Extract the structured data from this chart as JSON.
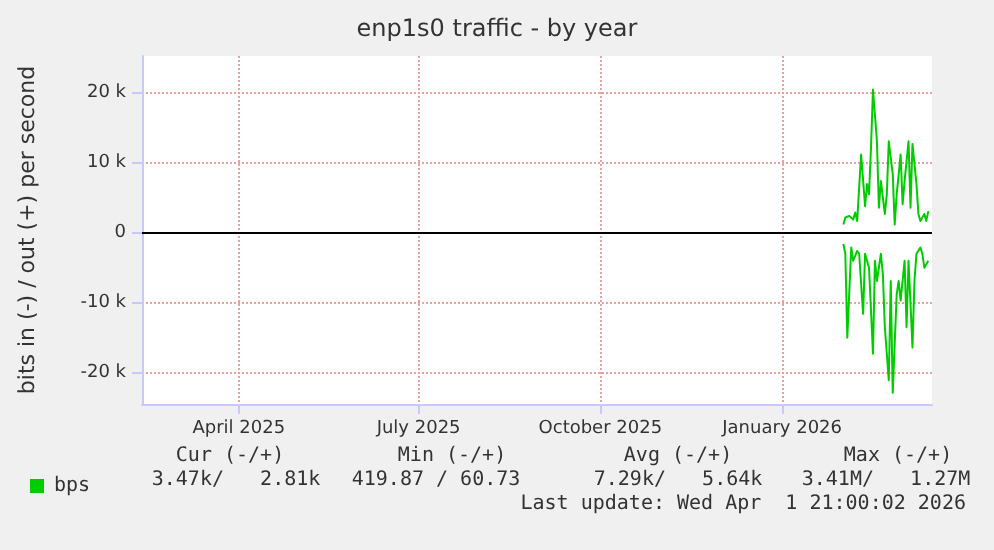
{
  "chart_data": {
    "type": "line",
    "title": "enp1s0 traffic - by year",
    "ylabel": "bits in (-) / out (+) per second",
    "xlim": [
      "2025-02-26",
      "2026-04-01T21:00"
    ],
    "xticks": [
      {
        "value": "2025-04-16",
        "label": "April 2025"
      },
      {
        "value": "2025-07-16",
        "label": "July 2025"
      },
      {
        "value": "2025-10-16",
        "label": "October 2025"
      },
      {
        "value": "2026-01-16",
        "label": "January 2026"
      }
    ],
    "ylim": [
      -24500,
      25300
    ],
    "yticks": [
      {
        "value": -20000,
        "label": "-20 k"
      },
      {
        "value": -10000,
        "label": "-10 k"
      },
      0,
      {
        "value": 10000,
        "label": "10 k"
      },
      {
        "value": 20000,
        "label": "20 k"
      }
    ],
    "grid": true,
    "legend": "bottom left",
    "marker": "none",
    "line_style": "solid",
    "ref_lines": [
      {
        "axis": "y",
        "value": 0,
        "color": "#000000"
      }
    ],
    "series": [
      {
        "name": "bps",
        "color": "#00cc00",
        "x": [
          "2026-02-16",
          "2026-02-17",
          "2026-02-19",
          "2026-02-21",
          "2026-02-22",
          "2026-02-23",
          "2026-02-25",
          "2026-02-27",
          "2026-02-28",
          "2026-03-01",
          "2026-03-02",
          "2026-03-03",
          "2026-03-05",
          "2026-03-06",
          "2026-03-07",
          "2026-03-09",
          "2026-03-10",
          "2026-03-11",
          "2026-03-13",
          "2026-03-14",
          "2026-03-15",
          "2026-03-17",
          "2026-03-18",
          "2026-03-19",
          "2026-03-21",
          "2026-03-22",
          "2026-03-23",
          "2026-03-25",
          "2026-03-26",
          "2026-03-27",
          "2026-03-29",
          "2026-03-30",
          "2026-03-31"
        ],
        "values": [
          1200,
          2200,
          2400,
          1900,
          2900,
          1700,
          11200,
          3800,
          7000,
          5500,
          12200,
          20500,
          13100,
          3600,
          7400,
          2700,
          5500,
          13100,
          8400,
          1200,
          5500,
          11200,
          4100,
          7400,
          13100,
          3600,
          12700,
          7000,
          2700,
          1700,
          2700,
          1700,
          3100
        ]
      },
      {
        "color": "#00cc00",
        "x": [
          "2026-02-16",
          "2026-02-17",
          "2026-02-18",
          "2026-02-20",
          "2026-02-21",
          "2026-02-23",
          "2026-02-24",
          "2026-02-26",
          "2026-02-27",
          "2026-03-01",
          "2026-03-03",
          "2026-03-04",
          "2026-03-05",
          "2026-03-07",
          "2026-03-08",
          "2026-03-09",
          "2026-03-11",
          "2026-03-12",
          "2026-03-13",
          "2026-03-15",
          "2026-03-16",
          "2026-03-17",
          "2026-03-19",
          "2026-03-20",
          "2026-03-21",
          "2026-03-23",
          "2026-03-24",
          "2026-03-25",
          "2026-03-27",
          "2026-03-28",
          "2026-03-29",
          "2026-03-31"
        ],
        "values": [
          -1600,
          -3000,
          -15000,
          -2100,
          -4000,
          -2600,
          -3000,
          -11600,
          -3000,
          -5000,
          -17300,
          -4000,
          -6900,
          -3000,
          -5900,
          -13500,
          -21100,
          -6900,
          -22900,
          -8800,
          -6900,
          -9700,
          -4000,
          -13500,
          -4000,
          -16400,
          -6900,
          -3000,
          -2100,
          -3000,
          -5000,
          -4000
        ]
      }
    ],
    "annotations": [
      "Cur (-/+)",
      "Min (-/+)",
      "Avg (-/+)",
      "Max (-/+)",
      "3.47k/   2.81k",
      "419.87 / 60.73",
      "7.29k/   5.64k",
      "3.41M/   1.27M",
      "Last update: Wed Apr  1 21:00:02 2026"
    ]
  }
}
